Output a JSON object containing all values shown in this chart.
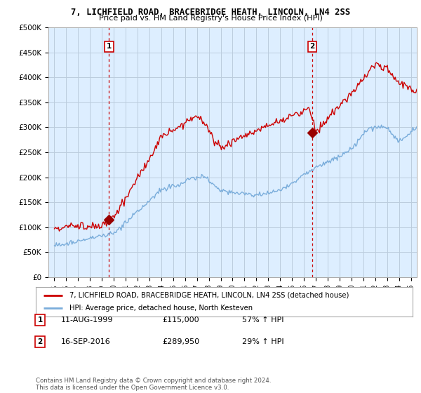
{
  "title": "7, LICHFIELD ROAD, BRACEBRIDGE HEATH, LINCOLN, LN4 2SS",
  "subtitle": "Price paid vs. HM Land Registry's House Price Index (HPI)",
  "red_label": "7, LICHFIELD ROAD, BRACEBRIDGE HEATH, LINCOLN, LN4 2SS (detached house)",
  "blue_label": "HPI: Average price, detached house, North Kesteven",
  "annotation1_num": "1",
  "annotation1_date": "11-AUG-1999",
  "annotation1_price": "£115,000",
  "annotation1_hpi": "57% ↑ HPI",
  "annotation2_num": "2",
  "annotation2_date": "16-SEP-2016",
  "annotation2_price": "£289,950",
  "annotation2_hpi": "29% ↑ HPI",
  "footnote": "Contains HM Land Registry data © Crown copyright and database right 2024.\nThis data is licensed under the Open Government Licence v3.0.",
  "sale1_x": 1999.6,
  "sale1_y": 115000,
  "sale2_x": 2016.7,
  "sale2_y": 289950,
  "ylim": [
    0,
    500000
  ],
  "xlim": [
    1994.5,
    2025.5
  ],
  "yticks": [
    0,
    50000,
    100000,
    150000,
    200000,
    250000,
    300000,
    350000,
    400000,
    450000,
    500000
  ],
  "ytick_labels": [
    "£0",
    "£50K",
    "£100K",
    "£150K",
    "£200K",
    "£250K",
    "£300K",
    "£350K",
    "£400K",
    "£450K",
    "£500K"
  ],
  "xticks": [
    1995,
    1996,
    1997,
    1998,
    1999,
    2000,
    2001,
    2002,
    2003,
    2004,
    2005,
    2006,
    2007,
    2008,
    2009,
    2010,
    2011,
    2012,
    2013,
    2014,
    2015,
    2016,
    2017,
    2018,
    2019,
    2020,
    2021,
    2022,
    2023,
    2024,
    2025
  ],
  "red_color": "#cc0000",
  "blue_color": "#7aaddb",
  "chart_bg": "#ddeeff",
  "vline_color": "#cc0000",
  "dot_color": "#990000",
  "background_color": "#ffffff",
  "grid_color": "#bbccdd"
}
